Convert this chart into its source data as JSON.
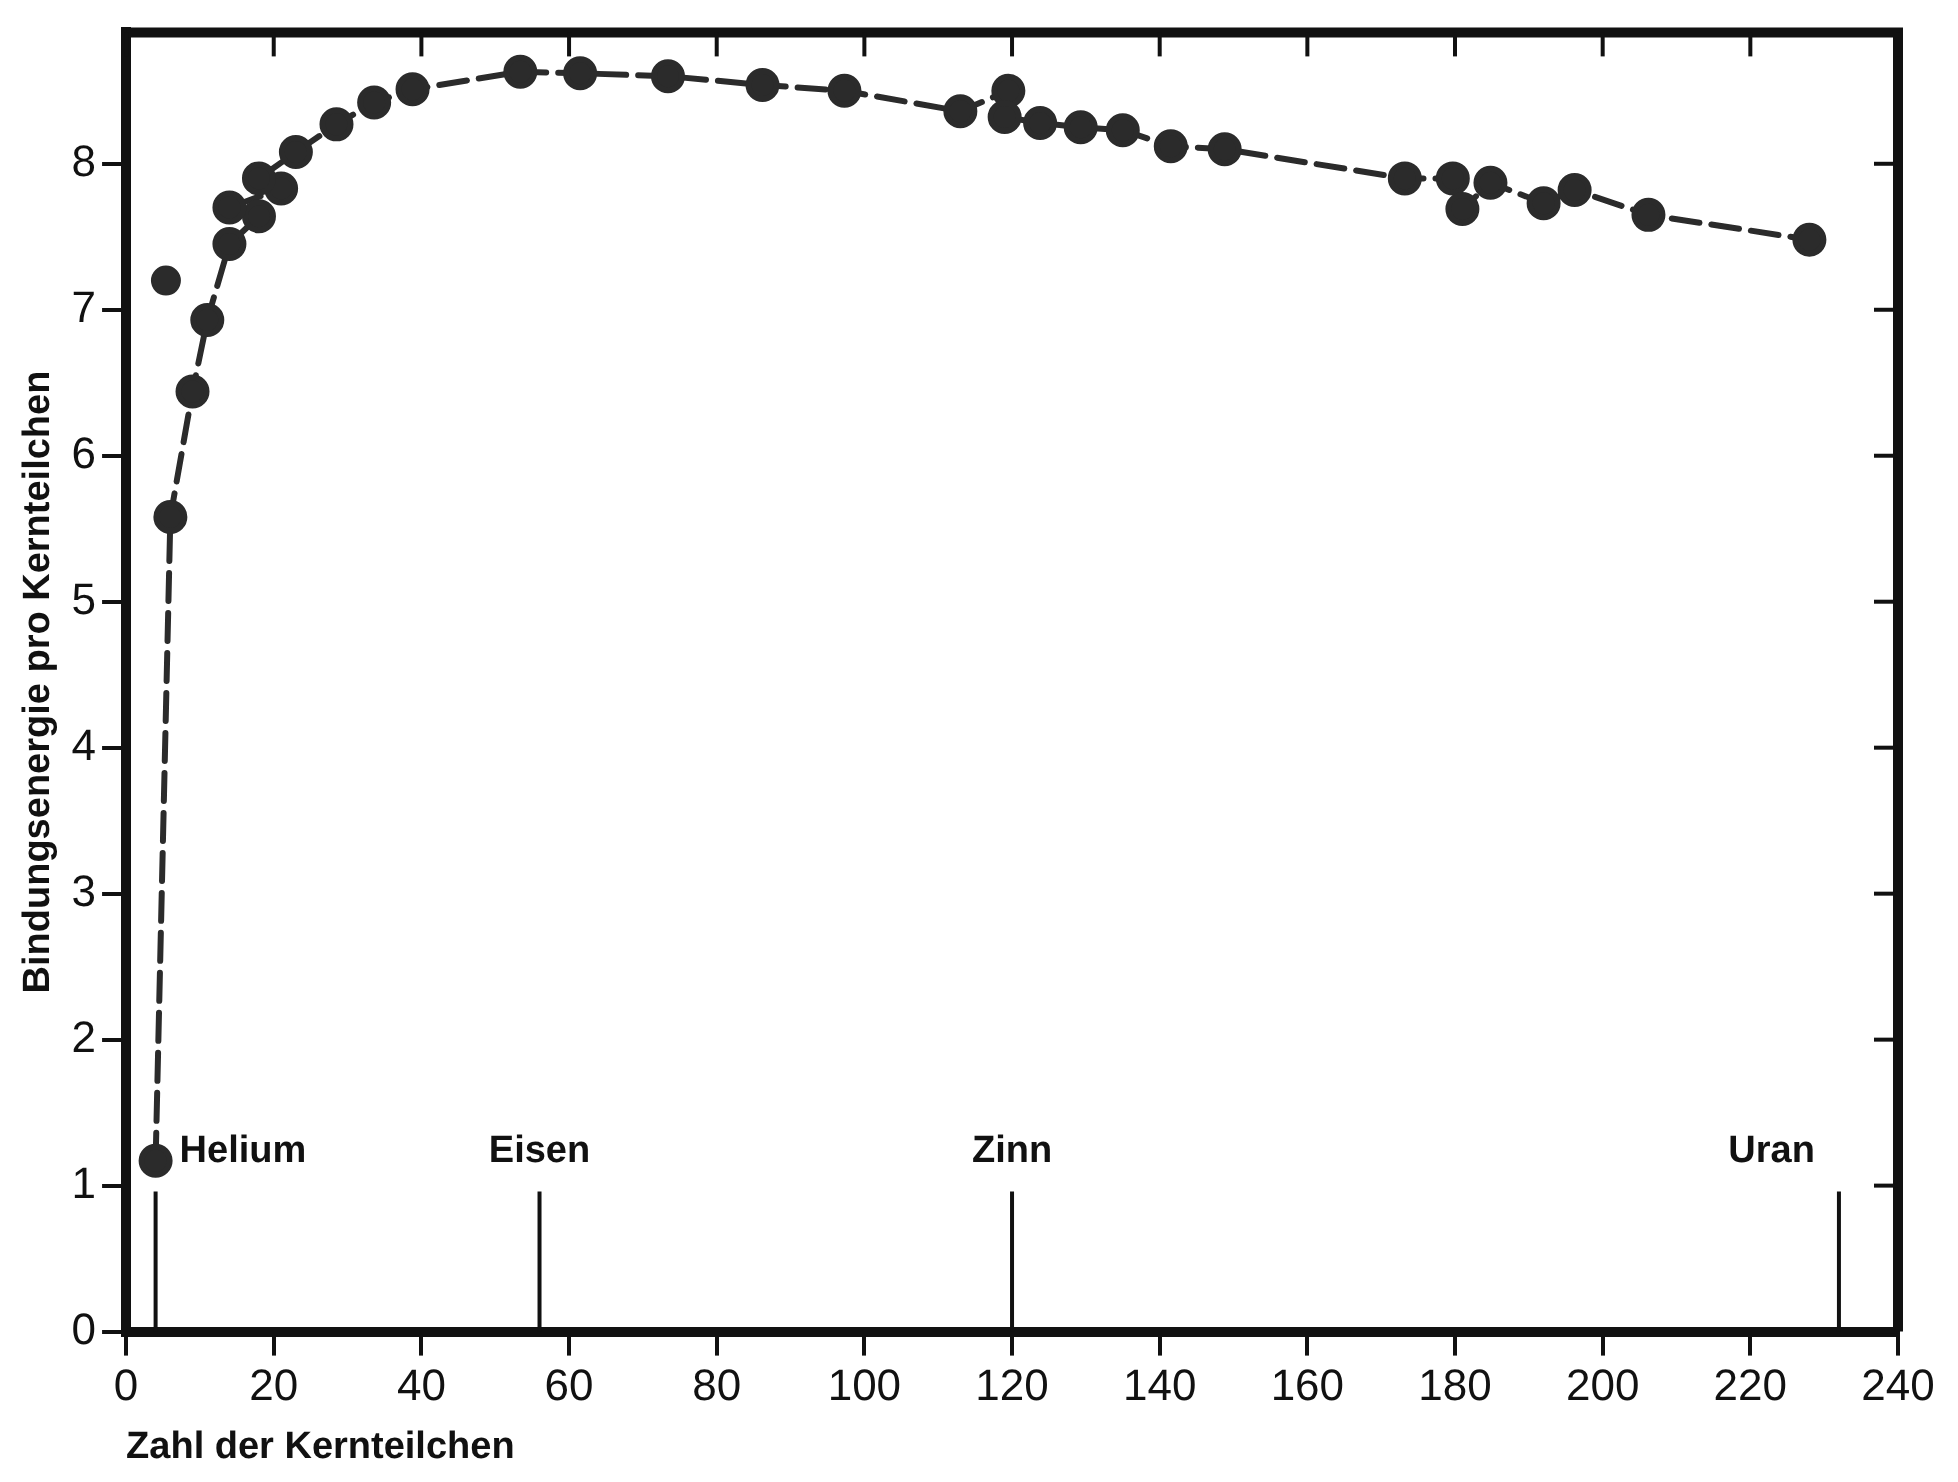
{
  "chart_data": {
    "type": "line",
    "xlabel": "Zahl der Kernteilchen",
    "ylabel": "Bindungsenergie pro Kernteilchen",
    "xlim": [
      0,
      240
    ],
    "xticks": [
      0,
      20,
      40,
      60,
      80,
      100,
      120,
      140,
      160,
      180,
      200,
      220,
      240
    ],
    "ylim": [
      0,
      8.9
    ],
    "yticks": [
      0,
      1,
      2,
      3,
      4,
      5,
      6,
      7,
      8
    ],
    "grid": false,
    "legend": false,
    "marker": "circle",
    "line_style": "dashed",
    "series": [
      {
        "color": "#2b2b2b",
        "x": [
          4,
          6,
          9,
          11,
          14,
          18,
          14,
          21,
          18,
          23,
          28.5,
          33.6,
          38.8,
          53.4,
          61.5,
          73.4,
          86.2,
          97.3,
          113,
          119.5,
          119,
          123.8,
          129.3,
          135,
          141.5,
          148.8,
          173.2,
          179.7,
          181,
          184.8,
          192,
          196.2,
          206.2,
          228
        ],
        "values": [
          1.17,
          5.58,
          6.44,
          6.93,
          7.45,
          7.64,
          7.7,
          7.83,
          7.9,
          8.08,
          8.27,
          8.42,
          8.51,
          8.63,
          8.62,
          8.6,
          8.54,
          8.5,
          8.36,
          8.5,
          8.32,
          8.28,
          8.25,
          8.23,
          8.12,
          8.1,
          7.9,
          7.9,
          7.69,
          7.87,
          7.73,
          7.82,
          7.65,
          7.48
        ]
      },
      {
        "type": "scatter",
        "color": "#2b2b2b",
        "x": [
          5.4
        ],
        "values": [
          7.2
        ]
      }
    ],
    "ref_lines": [
      {
        "axis": "x",
        "value": 4,
        "label": "Helium"
      },
      {
        "axis": "x",
        "value": 56,
        "label": "Eisen"
      },
      {
        "axis": "x",
        "value": 120,
        "label": "Zinn"
      },
      {
        "axis": "x",
        "value": 232,
        "label": "Uran"
      }
    ]
  }
}
